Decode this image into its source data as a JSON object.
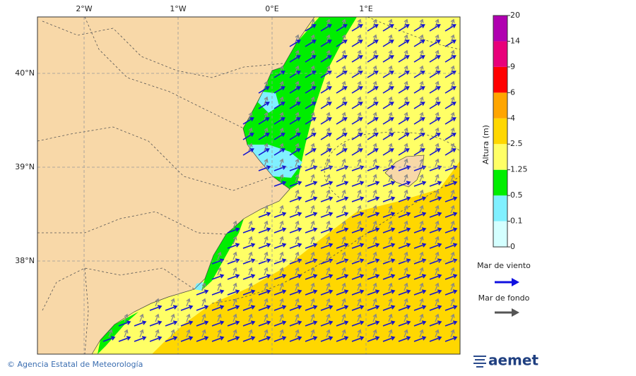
{
  "map": {
    "x_labels": [
      "2°W",
      "1°W",
      "0°E",
      "1°E"
    ],
    "y_labels": [
      "40°N",
      "39°N",
      "38°N"
    ]
  },
  "colorbar": {
    "title": "Altura (m)",
    "labels": [
      0,
      0.1,
      0.5,
      1.25,
      2.5,
      4,
      6,
      9,
      14,
      20
    ],
    "colors": [
      "#d4ffff",
      "#80f0ff",
      "#00ee00",
      "#ffff66",
      "#ffd700",
      "#ffa500",
      "#ff0000",
      "#e8007a",
      "#b000b0"
    ]
  },
  "legend": {
    "items": [
      "Mar de viento",
      "Mar de fondo"
    ]
  },
  "footer": {
    "credit": "© Agencia Estatal de Meteorología",
    "logo": "aemet"
  }
}
